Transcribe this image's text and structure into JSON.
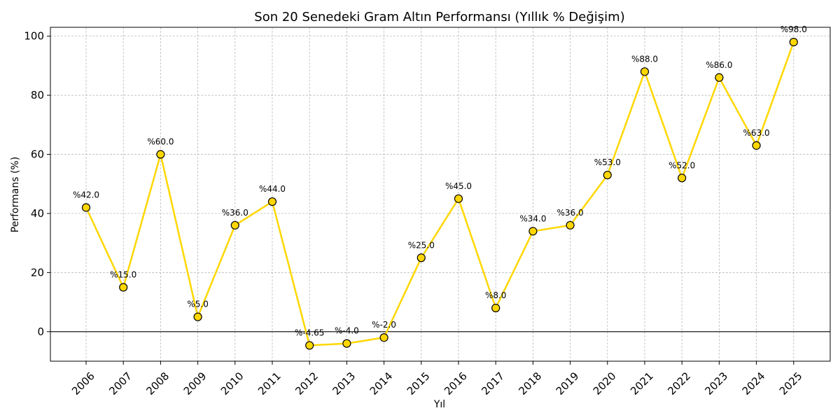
{
  "chart_data": {
    "type": "line",
    "title": "Son 20 Senedeki Gram Altın Performansı (Yıllık % Değişim)",
    "xlabel": "Yıl",
    "ylabel": "Performans (%)",
    "categories": [
      "2006",
      "2007",
      "2008",
      "2009",
      "2010",
      "2011",
      "2012",
      "2013",
      "2014",
      "2015",
      "2016",
      "2017",
      "2018",
      "2019",
      "2020",
      "2021",
      "2022",
      "2023",
      "2024",
      "2025"
    ],
    "values": [
      42,
      15,
      60,
      5,
      36,
      44,
      -4.65,
      -4,
      -2,
      25,
      45,
      8,
      34,
      36,
      53,
      88,
      52,
      86,
      63,
      98
    ],
    "data_labels": [
      "%42.0",
      "%15.0",
      "%60.0",
      "%5.0",
      "%36.0",
      "%44.0",
      "%-4.65",
      "%-4.0",
      "%-2.0",
      "%25.0",
      "%45.0",
      "%8.0",
      "%34.0",
      "%36.0",
      "%53.0",
      "%88.0",
      "%52.0",
      "%86.0",
      "%63.0",
      "%98.0"
    ],
    "yticks": [
      0,
      20,
      40,
      60,
      80,
      100
    ],
    "ylim": [
      -10,
      103
    ],
    "grid": true,
    "zero_line": true,
    "colors": {
      "line": "#FFD700",
      "marker_edge": "#000000",
      "zero_line": "#000000"
    }
  }
}
